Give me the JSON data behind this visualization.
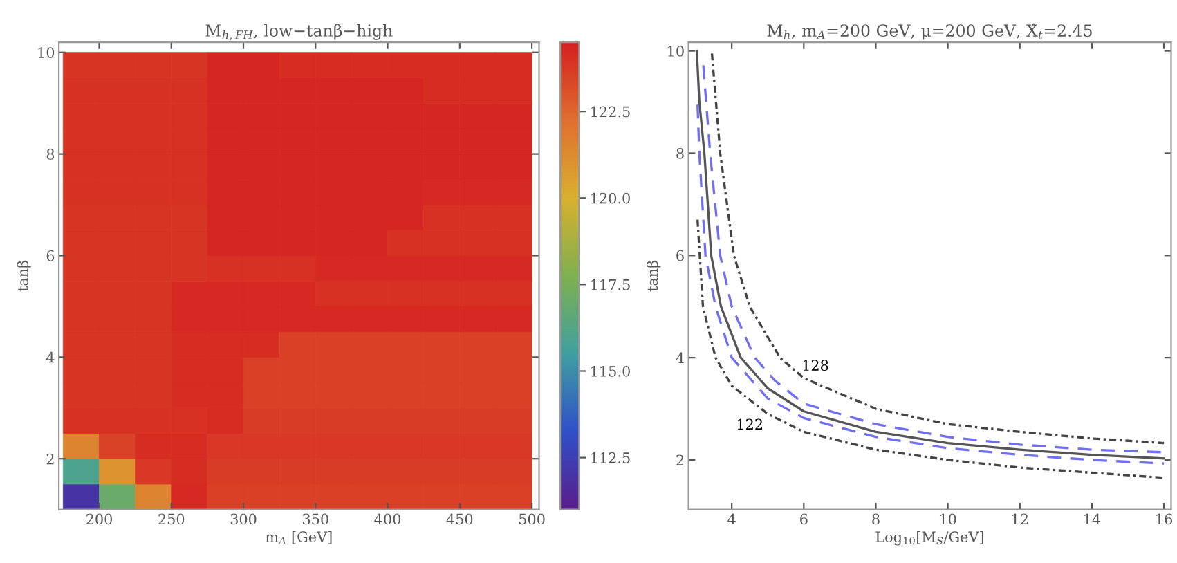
{
  "chart_data": [
    {
      "type": "heatmap",
      "title": "M$_{h,FH}$, low−tanβ−high",
      "xlabel": "m$_{A}$ [GeV]",
      "ylabel": "tanβ",
      "x": [
        187.5,
        212.5,
        237.5,
        262.5,
        287.5,
        312.5,
        337.5,
        362.5,
        387.5,
        412.5,
        437.5,
        462.5,
        487.5
      ],
      "y": [
        1.25,
        1.75,
        2.25,
        2.75,
        3.25,
        3.75,
        4.25,
        4.75,
        5.25,
        5.75,
        6.25,
        6.75,
        7.25,
        7.75,
        8.25,
        8.75,
        9.25,
        9.75
      ],
      "cells": [
        [
          112,
          117,
          121.5,
          124.2,
          123.6,
          123.6,
          123.6,
          123.6,
          123.6,
          123.6,
          123.6,
          123.6,
          123.6
        ],
        [
          116,
          121,
          123.8,
          124.1,
          123.7,
          123.7,
          123.7,
          123.7,
          123.7,
          123.7,
          123.7,
          123.7,
          123.7
        ],
        [
          121.5,
          123.5,
          124.1,
          124.1,
          123.8,
          123.8,
          123.8,
          123.8,
          123.8,
          123.8,
          123.8,
          123.8,
          123.8
        ],
        [
          124.0,
          124.0,
          124.0,
          124.0,
          124.1,
          123.7,
          123.7,
          123.7,
          123.7,
          123.7,
          123.7,
          123.7,
          123.7
        ],
        [
          123.9,
          123.9,
          123.9,
          124.1,
          124.1,
          123.6,
          123.6,
          123.6,
          123.6,
          123.6,
          123.6,
          123.6,
          123.6
        ],
        [
          123.9,
          123.9,
          123.9,
          124.1,
          124.1,
          123.6,
          123.6,
          123.6,
          123.6,
          123.6,
          123.6,
          123.6,
          123.6
        ],
        [
          123.9,
          123.9,
          123.9,
          124.1,
          124.1,
          124.1,
          123.6,
          123.6,
          123.6,
          123.6,
          123.6,
          123.6,
          123.6
        ],
        [
          123.9,
          123.9,
          123.9,
          124.2,
          124.2,
          124.2,
          124.2,
          124.2,
          124.2,
          124.2,
          124.2,
          124.2,
          124.2
        ],
        [
          123.9,
          123.9,
          123.9,
          124.2,
          124.2,
          124.2,
          124.2,
          124.0,
          124.0,
          124.0,
          124.0,
          124.0,
          124.0
        ],
        [
          123.9,
          123.9,
          123.9,
          123.9,
          124.0,
          124.0,
          124.0,
          124.2,
          124.2,
          124.2,
          124.2,
          124.2,
          124.2
        ],
        [
          123.9,
          123.9,
          123.9,
          123.9,
          124.3,
          124.3,
          124.3,
          124.3,
          124.3,
          124.0,
          124.0,
          124.0,
          124.0
        ],
        [
          123.9,
          123.9,
          123.9,
          123.9,
          124.3,
          124.3,
          124.3,
          124.3,
          124.3,
          124.3,
          124.0,
          124.0,
          124.0
        ],
        [
          124.0,
          124.0,
          124.0,
          124.0,
          124.3,
          124.3,
          124.3,
          124.3,
          124.3,
          124.3,
          124.2,
          124.2,
          124.2
        ],
        [
          124.0,
          124.0,
          124.0,
          124.0,
          124.3,
          124.3,
          124.3,
          124.3,
          124.3,
          124.3,
          124.3,
          124.3,
          124.3
        ],
        [
          124.0,
          124.0,
          124.0,
          124.0,
          124.3,
          124.3,
          124.3,
          124.3,
          124.3,
          124.3,
          124.3,
          124.3,
          124.3
        ],
        [
          124.0,
          124.0,
          124.0,
          124.0,
          124.3,
          124.3,
          124.3,
          124.3,
          124.3,
          124.3,
          124.3,
          124.3,
          124.3
        ],
        [
          124.0,
          124.0,
          124.0,
          124.0,
          124.3,
          124.3,
          124.3,
          124.3,
          124.3,
          124.3,
          124.1,
          124.1,
          124.1
        ],
        [
          123.9,
          123.9,
          123.9,
          123.9,
          124.3,
          124.3,
          124.1,
          124.1,
          124.1,
          124.1,
          124.1,
          124.1,
          124.1
        ]
      ],
      "xlim": [
        172,
        505
      ],
      "ylim": [
        1.0,
        10.2
      ],
      "xticks": [
        200,
        250,
        300,
        350,
        400,
        450,
        500
      ],
      "yticks": [
        2,
        4,
        6,
        8,
        10
      ],
      "clim": [
        111,
        124.5
      ],
      "cticks": [
        112.5,
        {
          "value": 115,
          "label": "115.0"
        },
        117.5,
        {
          "value": 120,
          "label": "120.0"
        },
        122.5
      ]
    },
    {
      "type": "line",
      "title": "M$_{h}$, m$_{A}$=200 GeV, μ=200 GeV, X̂$_{t}$=2.45",
      "xlabel": "Log$_{10}$[M$_{S}$/GeV]",
      "ylabel": "tanβ",
      "xlim": [
        2.8,
        16.2
      ],
      "ylim": [
        1.03,
        10.17
      ],
      "xticks": [
        4,
        6,
        8,
        10,
        12,
        14,
        16
      ],
      "yticks": [
        2,
        4,
        6,
        8,
        10
      ],
      "grid": false,
      "series": [
        {
          "color": "#555555",
          "line_style": "solid",
          "x": [
            3.03,
            3.1,
            3.24,
            3.43,
            3.7,
            4.25,
            5.0,
            6.0,
            8.0,
            10.0,
            12.0,
            14.0,
            16.0
          ],
          "values": [
            10.0,
            9.0,
            8.0,
            6.0,
            5.0,
            4.0,
            3.4,
            2.95,
            2.55,
            2.33,
            2.2,
            2.1,
            2.03
          ]
        },
        {
          "color": "#6f6ff0",
          "line_style": "dashed",
          "x": [
            3.21,
            3.4,
            3.68,
            4.0,
            4.64,
            5.2,
            6.0,
            8.0,
            10.0,
            12.0,
            14.0,
            16.0
          ],
          "values": [
            9.72,
            8.0,
            6.0,
            5.0,
            4.0,
            3.55,
            3.1,
            2.7,
            2.45,
            2.3,
            2.2,
            2.15
          ]
        },
        {
          "color": "#6f6ff0",
          "line_style": "dashed",
          "x": [
            3.05,
            3.1,
            3.27,
            3.55,
            4.0,
            5.0,
            6.0,
            8.0,
            10.0,
            12.0,
            14.0,
            16.0
          ],
          "values": [
            8.95,
            8.0,
            6.0,
            5.0,
            4.0,
            3.2,
            2.82,
            2.45,
            2.23,
            2.1,
            2.0,
            1.93
          ]
        },
        {
          "color": "#444444",
          "line_style": "dashdot",
          "x": [
            3.45,
            3.68,
            4.06,
            4.5,
            5.34,
            6.0,
            8.0,
            10.0,
            12.0,
            14.0,
            16.0
          ],
          "values": [
            9.95,
            8.0,
            6.0,
            5.0,
            4.0,
            3.6,
            3.0,
            2.7,
            2.55,
            2.42,
            2.33
          ]
        },
        {
          "color": "#444444",
          "line_style": "dashdot",
          "x": [
            3.05,
            3.2,
            3.55,
            4.0,
            5.0,
            6.0,
            8.0,
            10.0,
            12.0,
            14.0,
            16.0
          ],
          "values": [
            6.7,
            5.0,
            4.0,
            3.45,
            2.9,
            2.55,
            2.2,
            2.0,
            1.85,
            1.75,
            1.65
          ]
        }
      ],
      "annotations": [
        {
          "text": "128",
          "x": 6.0,
          "y": 3.6
        },
        {
          "text": "122",
          "x": 4.5,
          "y": 3.2
        }
      ]
    }
  ]
}
